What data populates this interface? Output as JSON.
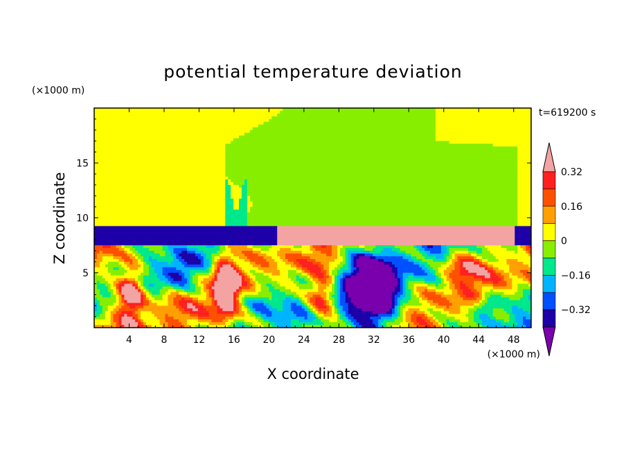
{
  "chart_data": {
    "type": "heatmap",
    "title": "potential temperature deviation",
    "xlabel": "X coordinate",
    "ylabel": "Z coordinate",
    "x_unit": "(×1000 m)",
    "y_unit": "(×1000 m)",
    "time_label": "t=619200 s",
    "xlim": [
      0,
      50
    ],
    "ylim": [
      0,
      20
    ],
    "x_ticks": [
      4,
      8,
      12,
      16,
      20,
      24,
      28,
      32,
      36,
      40,
      44,
      48
    ],
    "x_tick_labels": [
      "4",
      "8",
      "12",
      "16",
      "20",
      "24",
      "28",
      "32",
      "36",
      "40",
      "44",
      "48"
    ],
    "y_ticks": [
      5,
      10,
      15
    ],
    "y_tick_labels": [
      "5",
      "10",
      "15"
    ],
    "colorbar": {
      "levels": [
        -0.4,
        -0.32,
        -0.24,
        -0.16,
        -0.08,
        0,
        0.08,
        0.16,
        0.24,
        0.32,
        0.4
      ],
      "tick_values": [
        0.32,
        0.16,
        0,
        -0.16,
        -0.32
      ],
      "tick_labels": [
        "0.32",
        "0.16",
        "0",
        "−0.16",
        "−0.32"
      ],
      "colors": [
        "#7b00ad",
        "#1e00a8",
        "#0050ff",
        "#00b4ff",
        "#00e88c",
        "#88ee00",
        "#ffff00",
        "#ffa000",
        "#ff5000",
        "#ff2020",
        "#f4a3a3"
      ]
    },
    "regions": [
      {
        "name": "upper-green",
        "level": 0.04,
        "x": [
          0,
          50
        ],
        "z": [
          9.2,
          20
        ]
      },
      {
        "name": "upper-plume-a",
        "level": -0.04,
        "x": [
          15,
          39
        ],
        "z": [
          9,
          20
        ]
      },
      {
        "name": "upper-plume-b",
        "level": -0.04,
        "x": [
          37,
          49
        ],
        "z": [
          9,
          17
        ]
      },
      {
        "name": "inversion-west",
        "level": -0.36,
        "x": [
          0,
          21
        ],
        "z": [
          7.6,
          9.2
        ]
      },
      {
        "name": "inversion-east",
        "level": 0.36,
        "x": [
          22,
          48
        ],
        "z": [
          7.6,
          9.1
        ]
      },
      {
        "name": "inversion-far-east",
        "level": -0.36,
        "x": [
          48,
          50
        ],
        "z": [
          7.5,
          8.8
        ]
      },
      {
        "name": "warm-core-1",
        "level": 0.36,
        "x": [
          2.5,
          6
        ],
        "z": [
          0.5,
          6
        ]
      },
      {
        "name": "warm-core-2",
        "level": 0.36,
        "x": [
          13,
          17
        ],
        "z": [
          1,
          7
        ]
      },
      {
        "name": "cold-core",
        "level": -0.36,
        "x": [
          28,
          36
        ],
        "z": [
          0,
          7.5
        ]
      }
    ]
  }
}
